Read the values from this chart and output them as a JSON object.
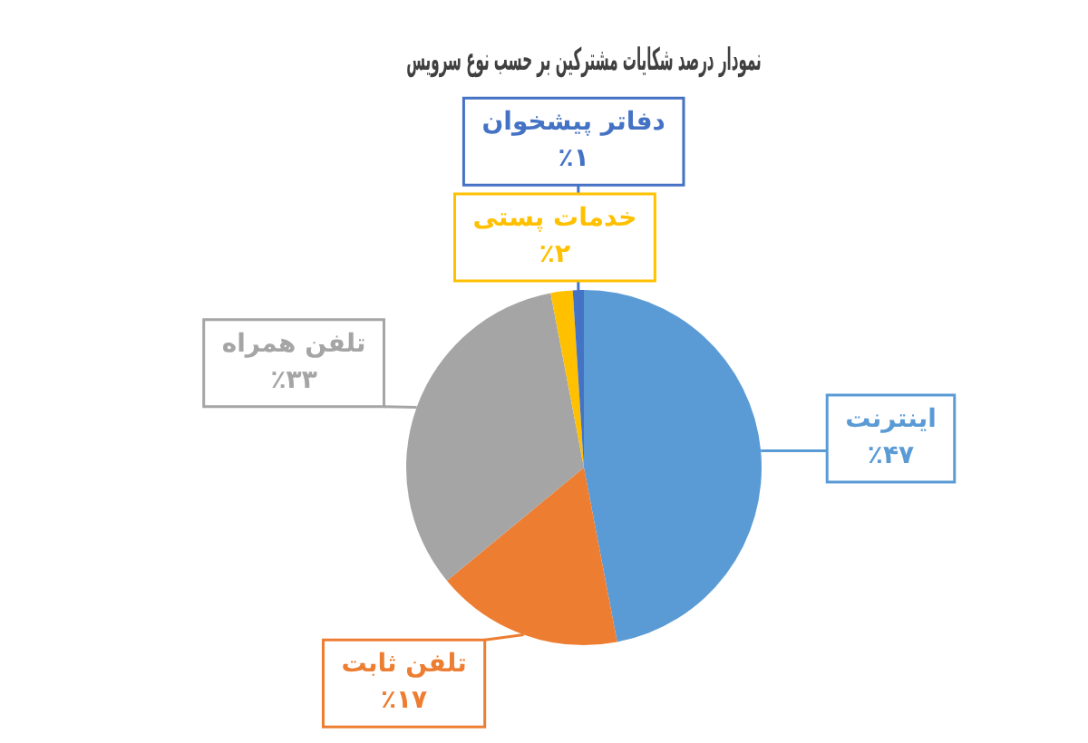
{
  "chart_data": {
    "type": "pie",
    "title": "نمودار درصد شکایات مشترکین بر حسب نوع سرویس",
    "categories": [
      "اینترنت",
      "تلفن ثابت",
      "تلفن همراه",
      "خدمات پستی",
      "دفاتر پیشخوان"
    ],
    "values": [
      47,
      17,
      33,
      2,
      1
    ],
    "colors": [
      "#5b9bd5",
      "#ed7d31",
      "#a5a5a5",
      "#ffc000",
      "#4472c4"
    ],
    "value_labels": [
      "٪۴۷",
      "٪۱۷",
      "٪۳۳",
      "٪۲",
      "٪۱"
    ]
  }
}
